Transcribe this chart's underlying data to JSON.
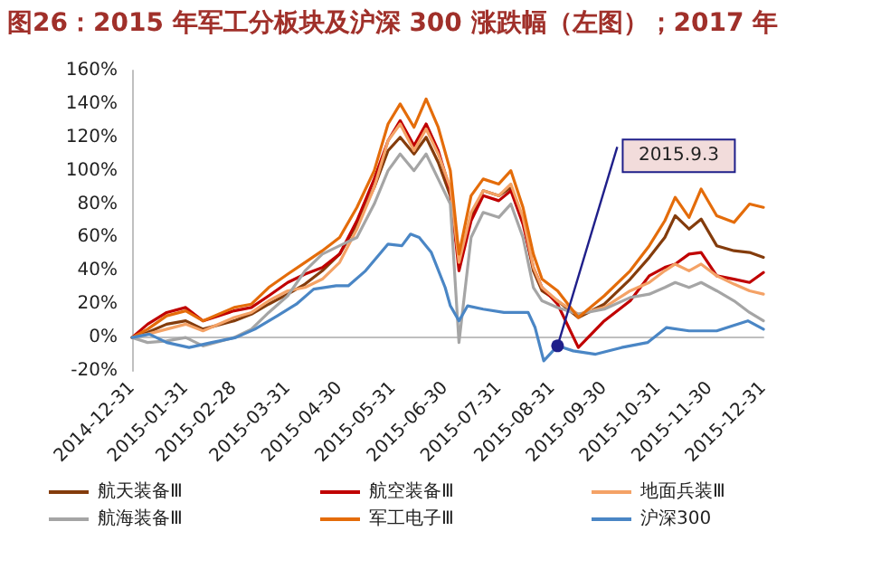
{
  "chart_data": {
    "type": "line",
    "title": "图26：2015 年军工分板块及沪深 300 涨跌幅（左图）；2017 年",
    "x": [
      "2014-12-31",
      "2015-01-09",
      "2015-01-20",
      "2015-01-31",
      "2015-02-10",
      "2015-02-28",
      "2015-03-10",
      "2015-03-20",
      "2015-03-31",
      "2015-04-10",
      "2015-04-20",
      "2015-04-30",
      "2015-05-10",
      "2015-05-20",
      "2015-05-28",
      "2015-06-04",
      "2015-06-12",
      "2015-06-19",
      "2015-06-26",
      "2015-07-03",
      "2015-07-08",
      "2015-07-15",
      "2015-07-22",
      "2015-07-31",
      "2015-08-07",
      "2015-08-14",
      "2015-08-20",
      "2015-08-25",
      "2015-09-03",
      "2015-09-15",
      "2015-09-30",
      "2015-10-15",
      "2015-10-26",
      "2015-11-04",
      "2015-11-10",
      "2015-11-18",
      "2015-11-25",
      "2015-12-04",
      "2015-12-14",
      "2015-12-23",
      "2015-12-31"
    ],
    "series": [
      {
        "name": "航天装备Ⅲ",
        "color": "#843c0c",
        "values": [
          0,
          3,
          8,
          10,
          5,
          10,
          14,
          20,
          26,
          32,
          40,
          50,
          68,
          90,
          112,
          120,
          110,
          120,
          105,
          85,
          45,
          72,
          88,
          85,
          90,
          70,
          40,
          28,
          22,
          12,
          20,
          35,
          48,
          60,
          73,
          65,
          71,
          55,
          52,
          51,
          48
        ]
      },
      {
        "name": "航空装备Ⅲ",
        "color": "#c00000",
        "values": [
          0,
          8,
          15,
          18,
          10,
          16,
          18,
          25,
          33,
          38,
          42,
          50,
          70,
          95,
          118,
          130,
          115,
          128,
          112,
          88,
          40,
          70,
          85,
          82,
          88,
          68,
          42,
          30,
          20,
          -6,
          10,
          22,
          37,
          42,
          44,
          50,
          51,
          37,
          35,
          33,
          39
        ]
      },
      {
        "name": "地面兵装Ⅲ",
        "color": "#f4a266",
        "values": [
          0,
          2,
          5,
          8,
          4,
          12,
          15,
          22,
          28,
          30,
          35,
          45,
          65,
          90,
          118,
          128,
          112,
          125,
          110,
          90,
          45,
          75,
          88,
          85,
          92,
          72,
          42,
          30,
          22,
          14,
          18,
          28,
          33,
          40,
          44,
          40,
          44,
          37,
          32,
          28,
          26
        ]
      },
      {
        "name": "航海装备Ⅲ",
        "color": "#a5a5a5",
        "values": [
          0,
          -3,
          -2,
          0,
          -5,
          0,
          5,
          15,
          25,
          40,
          50,
          55,
          60,
          80,
          100,
          110,
          100,
          110,
          95,
          80,
          -3,
          60,
          75,
          72,
          80,
          60,
          30,
          22,
          18,
          14,
          17,
          24,
          26,
          30,
          33,
          30,
          33,
          28,
          22,
          15,
          10
        ]
      },
      {
        "name": "军工电子Ⅲ",
        "color": "#e46c0a",
        "values": [
          0,
          5,
          13,
          16,
          10,
          18,
          20,
          30,
          38,
          45,
          52,
          60,
          78,
          100,
          128,
          140,
          126,
          143,
          126,
          100,
          50,
          85,
          95,
          92,
          100,
          78,
          50,
          35,
          28,
          12,
          25,
          40,
          55,
          70,
          84,
          72,
          89,
          73,
          69,
          80,
          78
        ]
      },
      {
        "name": "沪深300",
        "color": "#4a86c5",
        "x": [
          "2014-12-31",
          "2015-01-10",
          "2015-01-20",
          "2015-02-02",
          "2015-02-15",
          "2015-03-01",
          "2015-03-12",
          "2015-03-25",
          "2015-04-05",
          "2015-04-15",
          "2015-04-28",
          "2015-05-05",
          "2015-05-15",
          "2015-05-28",
          "2015-06-05",
          "2015-06-10",
          "2015-06-15",
          "2015-06-22",
          "2015-06-30",
          "2015-07-03",
          "2015-07-08",
          "2015-07-13",
          "2015-07-22",
          "2015-08-03",
          "2015-08-17",
          "2015-08-21",
          "2015-08-26",
          "2015-09-03",
          "2015-09-12",
          "2015-09-25",
          "2015-10-10",
          "2015-10-25",
          "2015-11-05",
          "2015-11-18",
          "2015-12-04",
          "2015-12-22",
          "2015-12-31"
        ],
        "values": [
          0,
          2,
          -3,
          -6,
          -3,
          0,
          5,
          13,
          20,
          29,
          31,
          31,
          40,
          56,
          55,
          62,
          60,
          51,
          30,
          19,
          10,
          19,
          17,
          15,
          15,
          6,
          -14,
          -5,
          -8,
          -10,
          -6,
          -3,
          6,
          4,
          4,
          10,
          5
        ]
      }
    ],
    "xlim": [
      "2014-12-31",
      "2015-12-31"
    ],
    "xticks": [
      "2014-12-31",
      "2015-01-31",
      "2015-02-28",
      "2015-03-31",
      "2015-04-30",
      "2015-05-31",
      "2015-06-30",
      "2015-07-31",
      "2015-08-31",
      "2015-09-30",
      "2015-10-31",
      "2015-11-30",
      "2015-12-31"
    ],
    "ylim": [
      -20,
      160
    ],
    "yticks": [
      {
        "value": -20,
        "label": "-20%"
      },
      {
        "value": 0,
        "label": "0%"
      },
      {
        "value": 20,
        "label": "20%"
      },
      {
        "value": 40,
        "label": "40%"
      },
      {
        "value": 60,
        "label": "60%"
      },
      {
        "value": 80,
        "label": "80%"
      },
      {
        "value": 100,
        "label": "100%"
      },
      {
        "value": 120,
        "label": "120%"
      },
      {
        "value": 140,
        "label": "140%"
      },
      {
        "value": 160,
        "label": "160%"
      }
    ],
    "annotations": [
      {
        "text": "2015.9.3",
        "x": "2015-09-03",
        "y": -5
      }
    ],
    "legend": "bottom",
    "grid": false
  }
}
